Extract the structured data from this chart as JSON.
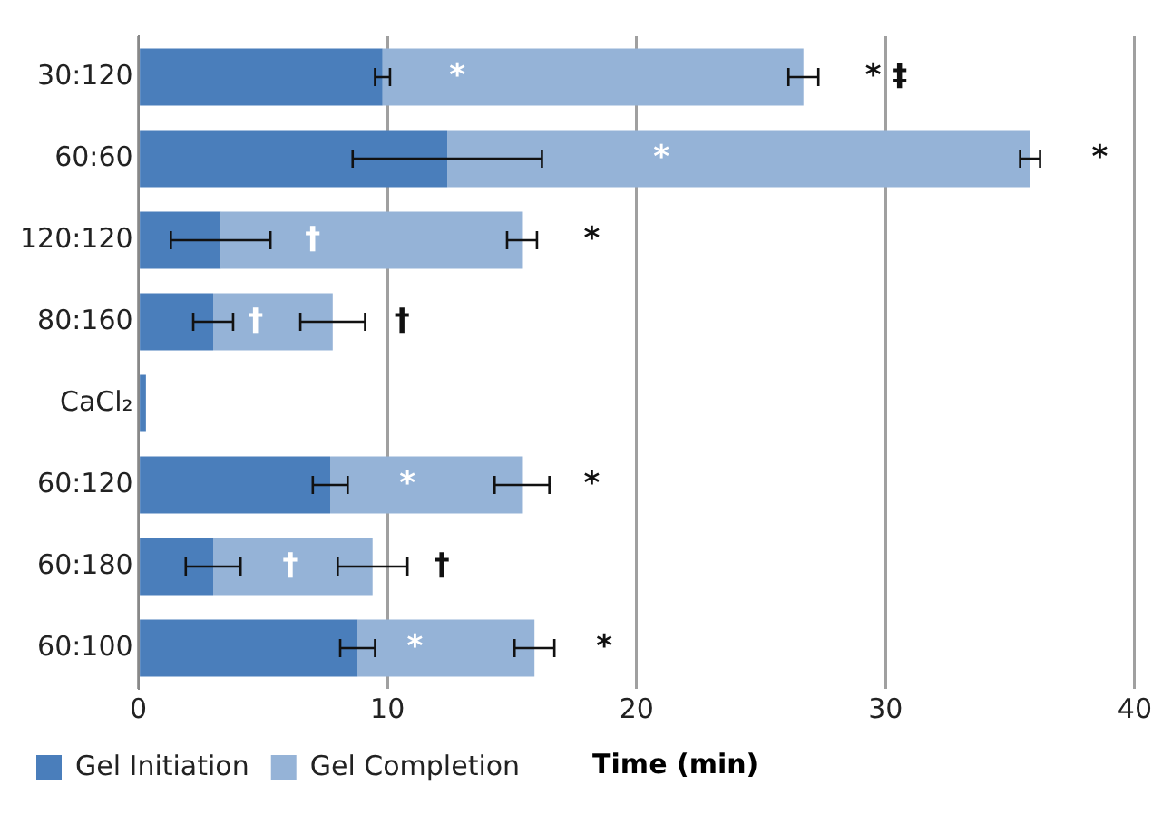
{
  "chart_data": {
    "type": "bar",
    "orientation": "horizontal",
    "stacked": true,
    "xlabel": "Time (min)",
    "categories": [
      "30:120",
      "60:60",
      "120:120",
      "80:160",
      "CaCl₂",
      "60:120",
      "60:180",
      "60:100"
    ],
    "series": [
      {
        "name": "Gel Initiation",
        "color": "#4a7ebb",
        "values": [
          9.8,
          12.4,
          3.3,
          3.0,
          0.3,
          7.7,
          3.0,
          8.8
        ],
        "errors": [
          0.3,
          3.8,
          2.0,
          0.8,
          null,
          0.7,
          1.1,
          0.7
        ]
      },
      {
        "name": "Gel Completion",
        "color": "#95b3d7",
        "values": [
          16.9,
          23.4,
          12.1,
          4.8,
          null,
          7.7,
          6.4,
          7.1
        ],
        "errors": [
          0.6,
          0.4,
          0.6,
          1.3,
          null,
          1.1,
          1.4,
          0.8
        ]
      }
    ],
    "xlim": [
      0,
      40
    ],
    "xticks": [
      0,
      10,
      20,
      30,
      40
    ],
    "grid": "x",
    "legend": "bottom",
    "annotations": [
      {
        "text": "*",
        "x": 12.8,
        "y": "30:120"
      },
      {
        "text": "* ‡",
        "x": 26.7,
        "y": "30:120"
      },
      {
        "text": "*",
        "x": 21.0,
        "y": "60:60"
      },
      {
        "text": "*",
        "x": 35.8,
        "y": "60:60"
      },
      {
        "text": "†",
        "x": 7.0,
        "y": "120:120"
      },
      {
        "text": "*",
        "x": 15.4,
        "y": "120:120"
      },
      {
        "text": "†",
        "x": 4.7,
        "y": "80:160"
      },
      {
        "text": "†",
        "x": 7.8,
        "y": "80:160"
      },
      {
        "text": "*",
        "x": 10.8,
        "y": "60:120"
      },
      {
        "text": "*",
        "x": 15.4,
        "y": "60:120"
      },
      {
        "text": "†",
        "x": 6.1,
        "y": "60:180"
      },
      {
        "text": "†",
        "x": 9.4,
        "y": "60:180"
      },
      {
        "text": "*",
        "x": 11.1,
        "y": "60:100"
      },
      {
        "text": "*",
        "x": 15.9,
        "y": "60:100"
      }
    ]
  }
}
